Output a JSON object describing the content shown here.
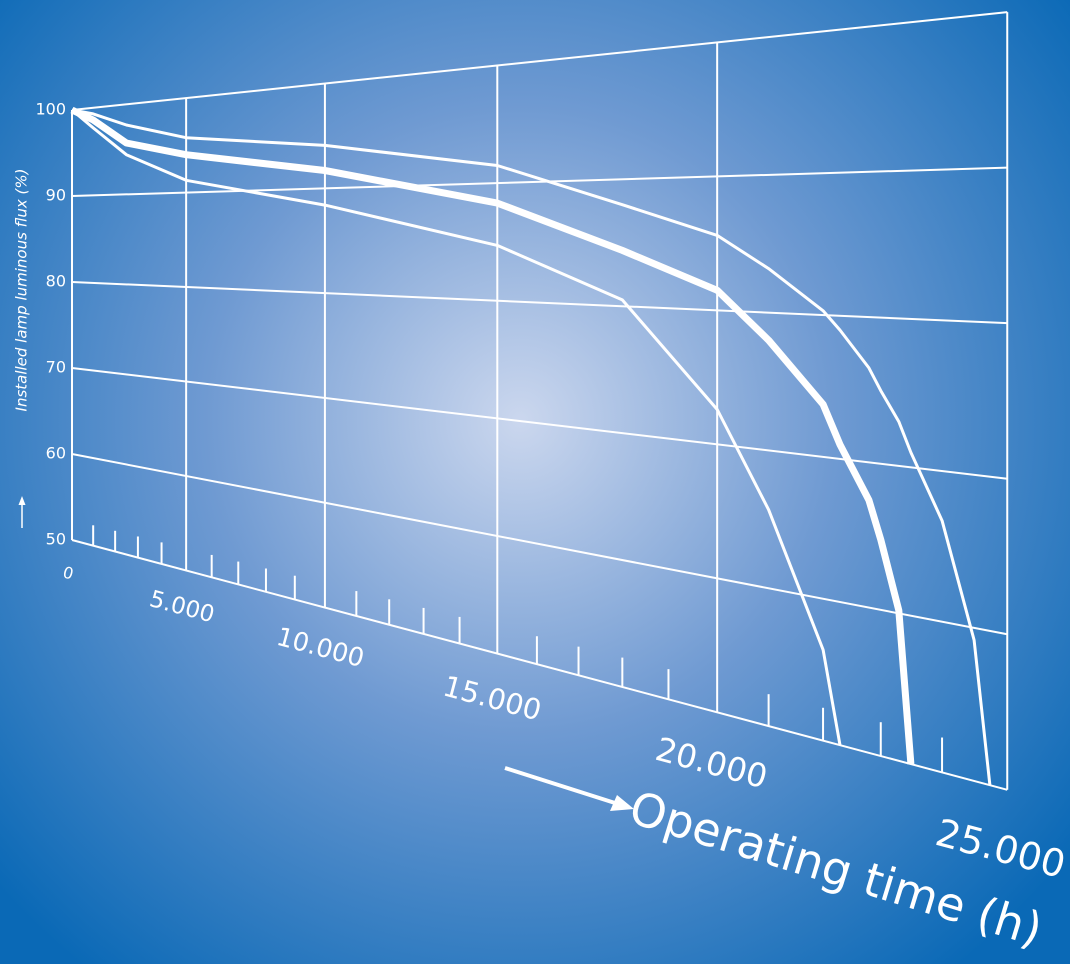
{
  "chart_data": {
    "type": "line",
    "xlabel": "Operating time (h)",
    "ylabel": "Installed lamp luminous flux (%)",
    "x": [
      0,
      1000,
      2500,
      5000,
      10000,
      15000,
      18000,
      20000,
      21000,
      22000,
      22300,
      22800,
      23000,
      23300,
      23500,
      24000,
      24500,
      24740
    ],
    "series": [
      {
        "color": "#ffffff",
        "values": [
          100,
          97.7,
          94.4,
          91.3,
          88.4,
          84.7,
          80.5,
          72.6,
          65.7,
          56.4,
          50,
          null,
          null,
          null,
          null,
          null,
          null,
          null
        ]
      },
      {
        "color": "#ffffff",
        "emphasis": true,
        "values": [
          100,
          98.6,
          95.7,
          94,
          91.7,
          88.3,
          84.4,
          81.5,
          78,
          73.7,
          71,
          67.4,
          64.8,
          60.2,
          50,
          null,
          null,
          null
        ]
      },
      {
        "color": "#ffffff",
        "values": [
          100,
          99.3,
          97.7,
          95.8,
          94.1,
          91.5,
          88,
          85.6,
          83.2,
          80.3,
          79,
          76.5,
          75,
          73,
          71,
          66.7,
          59.2,
          50
        ]
      }
    ],
    "xlim": [
      0,
      25000
    ],
    "ylim": [
      50,
      100
    ],
    "xticks": [
      0,
      {
        "value": 5000,
        "label": "5.000"
      },
      {
        "value": 10000,
        "label": "10.000"
      },
      {
        "value": 15000,
        "label": "15.000"
      },
      {
        "value": 20000,
        "label": "20.000"
      },
      {
        "value": 25000,
        "label": "25.000"
      }
    ],
    "xminorticks": [
      1000,
      2000,
      3000,
      4000,
      6000,
      7000,
      8000,
      9000,
      11000,
      12000,
      13000,
      14000,
      16000,
      17000,
      18000,
      19000,
      21000,
      22000,
      23000,
      24000
    ],
    "yticks": [
      50,
      60,
      70,
      80,
      90,
      100
    ],
    "grid": true
  }
}
